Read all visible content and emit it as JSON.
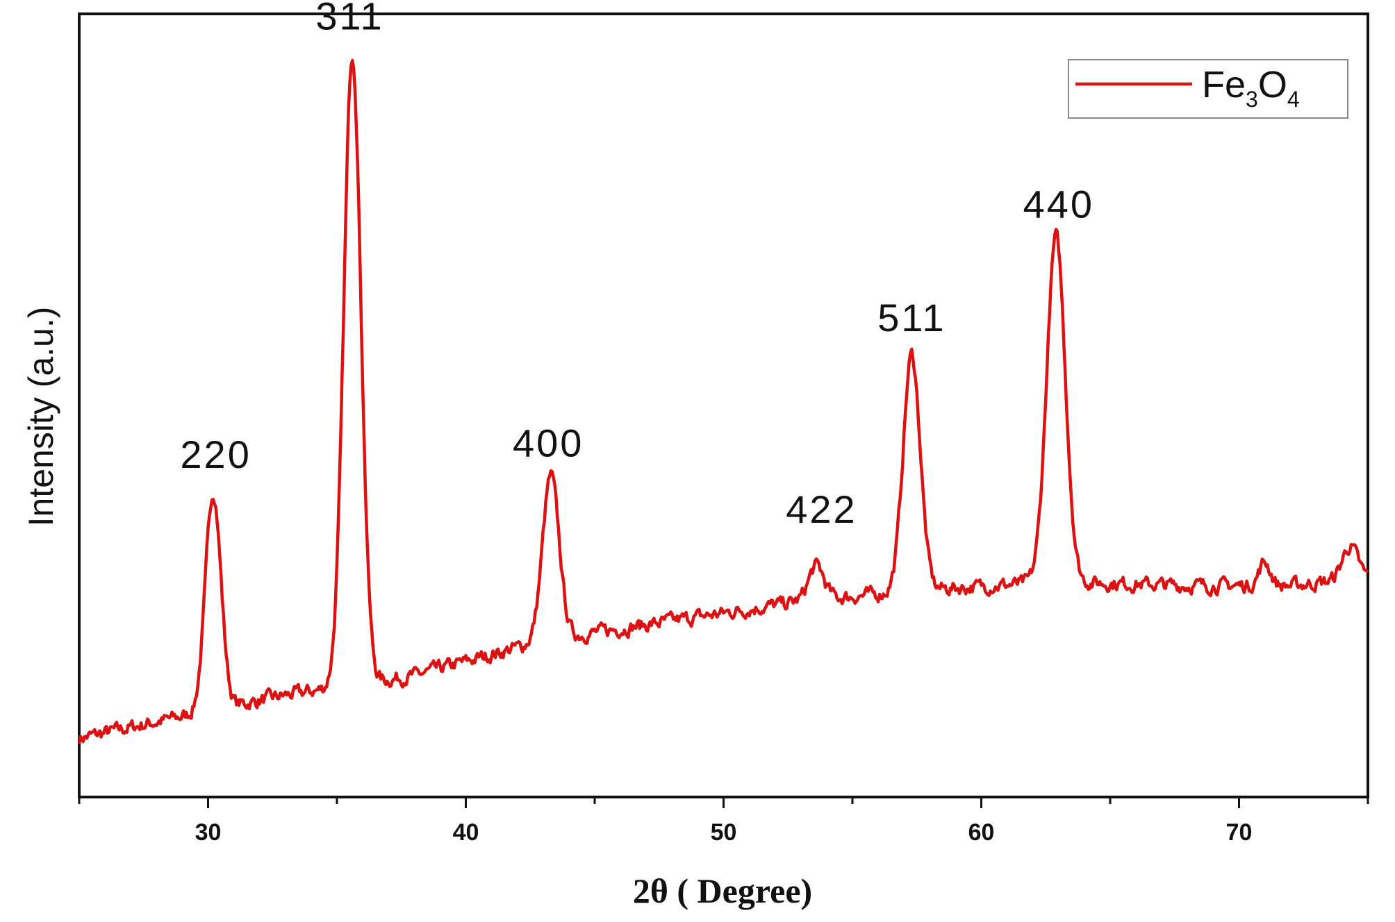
{
  "chart_data": {
    "type": "line",
    "xlabel": "2θ ( Degree)",
    "ylabel": "Intensity (a.u.)",
    "xlim": [
      25,
      75
    ],
    "ylim": [
      0,
      100
    ],
    "xticks": [
      30,
      40,
      50,
      60,
      70
    ],
    "y_tick_labels": false,
    "grid": false,
    "legend": {
      "position": "top-right"
    },
    "series": [
      {
        "name": "Fe3O4",
        "name_parts": {
          "base1": "Fe",
          "sub1": "3",
          "base2": "O",
          "sub2": "4"
        },
        "color": "#dd1111",
        "baseline": [
          [
            25,
            7.5
          ],
          [
            30,
            11
          ],
          [
            33,
            13
          ],
          [
            38,
            15.5
          ],
          [
            43,
            20
          ],
          [
            48,
            22.5
          ],
          [
            53,
            25
          ],
          [
            58,
            26.5
          ],
          [
            63,
            27.5
          ],
          [
            68,
            27
          ],
          [
            72,
            27
          ],
          [
            75,
            28
          ]
        ],
        "peaks": [
          {
            "x": 30.2,
            "y": 39,
            "width": 0.3
          },
          {
            "x": 35.6,
            "y": 95,
            "width": 0.33
          },
          {
            "x": 43.3,
            "y": 41,
            "width": 0.32
          },
          {
            "x": 53.6,
            "y": 29.5,
            "width": 0.3
          },
          {
            "x": 57.3,
            "y": 56.5,
            "width": 0.33
          },
          {
            "x": 62.9,
            "y": 71.5,
            "width": 0.36
          },
          {
            "x": 71.0,
            "y": 30,
            "width": 0.22
          },
          {
            "x": 74.3,
            "y": 32,
            "width": 0.3
          }
        ]
      }
    ],
    "annotations": [
      {
        "text": "220",
        "x": 30.3,
        "y": 42
      },
      {
        "text": "311",
        "x": 35.5,
        "y": 98
      },
      {
        "text": "400",
        "x": 43.2,
        "y": 43.5
      },
      {
        "text": "422",
        "x": 53.8,
        "y": 35
      },
      {
        "text": "511",
        "x": 57.3,
        "y": 59.5
      },
      {
        "text": "440",
        "x": 63.0,
        "y": 74
      }
    ]
  }
}
